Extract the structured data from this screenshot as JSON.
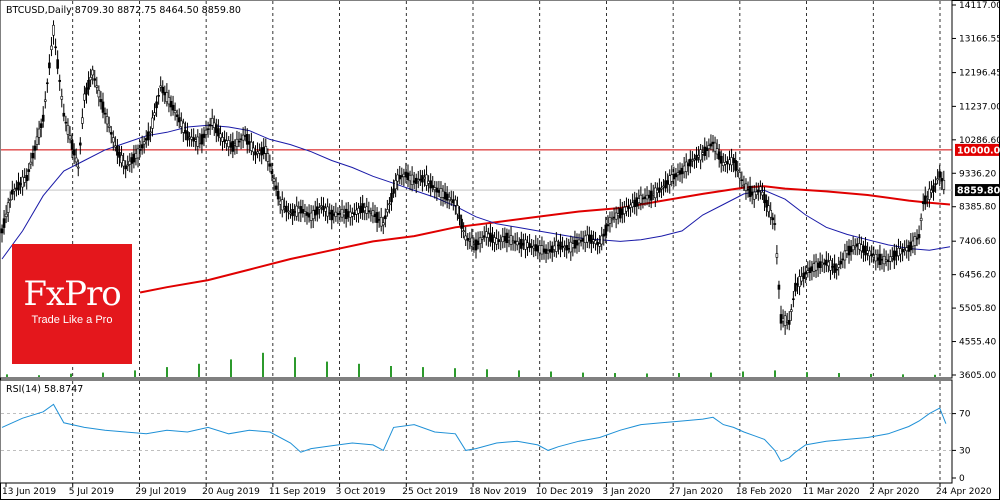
{
  "chart_data": [
    {
      "type": "candlestick",
      "info_line": "BTCUSD,Daily  8709.30 8872.75 8464.50 8859.80",
      "symbol": "BTCUSD",
      "timeframe": "Daily",
      "ohlc_last": {
        "open": 8709.3,
        "high": 8872.75,
        "low": 8464.5,
        "close": 8859.8
      },
      "price_tag": "8859.80",
      "level_line": {
        "value": 10000.0,
        "label": "10000.00"
      },
      "y_ticks": [
        "14117.00",
        "13166.55",
        "12196.45",
        "11237.00",
        "10286.60",
        "9336.20",
        "8385.80",
        "7406.60",
        "6456.20",
        "5505.80",
        "4555.40",
        "3605.00"
      ],
      "ylim": [
        3605,
        14117
      ],
      "x_ticks": [
        "13 Jun 2019",
        "5 Jul 2019",
        "29 Jul 2019",
        "20 Aug 2019",
        "11 Sep 2019",
        "3 Oct 2019",
        "25 Oct 2019",
        "18 Nov 2019",
        "10 Dec 2019",
        "3 Jan 2020",
        "27 Jan 2020",
        "18 Feb 2020",
        "11 Mar 2020",
        "2 Apr 2020",
        "24 Apr 2020"
      ],
      "series_path": [
        [
          0,
          7700
        ],
        [
          5,
          8800
        ],
        [
          12,
          9200
        ],
        [
          20,
          10900
        ],
        [
          25,
          13400
        ],
        [
          30,
          11000
        ],
        [
          37,
          9500
        ],
        [
          40,
          11500
        ],
        [
          44,
          12200
        ],
        [
          48,
          11400
        ],
        [
          55,
          10100
        ],
        [
          60,
          9500
        ],
        [
          66,
          9900
        ],
        [
          72,
          10500
        ],
        [
          77,
          11800
        ],
        [
          83,
          11200
        ],
        [
          90,
          10400
        ],
        [
          96,
          10200
        ],
        [
          102,
          10800
        ],
        [
          107,
          10300
        ],
        [
          112,
          10100
        ],
        [
          118,
          10400
        ],
        [
          123,
          9900
        ],
        [
          128,
          10000
        ],
        [
          135,
          8500
        ],
        [
          140,
          8200
        ],
        [
          145,
          8300
        ],
        [
          150,
          8100
        ],
        [
          155,
          8400
        ],
        [
          160,
          8150
        ],
        [
          165,
          8200
        ],
        [
          170,
          8150
        ],
        [
          175,
          8350
        ],
        [
          180,
          8200
        ],
        [
          185,
          7900
        ],
        [
          192,
          9200
        ],
        [
          196,
          9300
        ],
        [
          200,
          9100
        ],
        [
          205,
          9200
        ],
        [
          210,
          8900
        ],
        [
          215,
          8700
        ],
        [
          220,
          8500
        ],
        [
          225,
          7500
        ],
        [
          230,
          7300
        ],
        [
          235,
          7600
        ],
        [
          240,
          7400
        ],
        [
          245,
          7500
        ],
        [
          250,
          7350
        ],
        [
          255,
          7300
        ],
        [
          260,
          7200
        ],
        [
          265,
          7100
        ],
        [
          270,
          7300
        ],
        [
          275,
          7200
        ],
        [
          280,
          7400
        ],
        [
          285,
          7500
        ],
        [
          290,
          7300
        ],
        [
          295,
          8000
        ],
        [
          300,
          8200
        ],
        [
          305,
          8400
        ],
        [
          310,
          8600
        ],
        [
          315,
          8700
        ],
        [
          320,
          8900
        ],
        [
          325,
          9200
        ],
        [
          330,
          9400
        ],
        [
          335,
          9700
        ],
        [
          340,
          9900
        ],
        [
          345,
          10200
        ],
        [
          350,
          9600
        ],
        [
          355,
          9700
        ],
        [
          360,
          9000
        ],
        [
          365,
          8700
        ],
        [
          368,
          8900
        ],
        [
          375,
          7900
        ],
        [
          378,
          5200
        ],
        [
          382,
          5100
        ],
        [
          385,
          6100
        ],
        [
          390,
          6500
        ],
        [
          395,
          6700
        ],
        [
          400,
          6800
        ],
        [
          405,
          6600
        ],
        [
          410,
          7100
        ],
        [
          415,
          7300
        ],
        [
          420,
          7100
        ],
        [
          425,
          6900
        ],
        [
          430,
          6850
        ],
        [
          435,
          7100
        ],
        [
          440,
          7200
        ],
        [
          445,
          7550
        ],
        [
          447,
          8500
        ],
        [
          452,
          8900
        ],
        [
          455,
          9300
        ],
        [
          458,
          8860
        ]
      ],
      "ma_blue_path": [
        [
          0,
          6900
        ],
        [
          10,
          7700
        ],
        [
          20,
          8700
        ],
        [
          30,
          9400
        ],
        [
          40,
          9700
        ],
        [
          50,
          10000
        ],
        [
          60,
          10200
        ],
        [
          70,
          10400
        ],
        [
          80,
          10500
        ],
        [
          90,
          10650
        ],
        [
          100,
          10700
        ],
        [
          110,
          10650
        ],
        [
          120,
          10550
        ],
        [
          130,
          10300
        ],
        [
          140,
          10150
        ],
        [
          150,
          9950
        ],
        [
          160,
          9700
        ],
        [
          170,
          9500
        ],
        [
          180,
          9250
        ],
        [
          190,
          9050
        ],
        [
          200,
          8850
        ],
        [
          210,
          8650
        ],
        [
          220,
          8400
        ],
        [
          230,
          8100
        ],
        [
          240,
          7900
        ],
        [
          250,
          7800
        ],
        [
          260,
          7700
        ],
        [
          270,
          7600
        ],
        [
          280,
          7500
        ],
        [
          290,
          7450
        ],
        [
          300,
          7400
        ],
        [
          310,
          7450
        ],
        [
          320,
          7550
        ],
        [
          330,
          7700
        ],
        [
          340,
          8150
        ],
        [
          350,
          8450
        ],
        [
          360,
          8750
        ],
        [
          370,
          8850
        ],
        [
          380,
          8600
        ],
        [
          390,
          8150
        ],
        [
          400,
          7800
        ],
        [
          410,
          7600
        ],
        [
          420,
          7450
        ],
        [
          430,
          7300
        ],
        [
          440,
          7200
        ],
        [
          450,
          7150
        ],
        [
          460,
          7250
        ]
      ],
      "ma_red_path": [
        [
          67,
          5950
        ],
        [
          80,
          6100
        ],
        [
          100,
          6300
        ],
        [
          120,
          6600
        ],
        [
          140,
          6900
        ],
        [
          160,
          7150
        ],
        [
          180,
          7400
        ],
        [
          200,
          7550
        ],
        [
          220,
          7800
        ],
        [
          240,
          7950
        ],
        [
          260,
          8100
        ],
        [
          280,
          8250
        ],
        [
          300,
          8350
        ],
        [
          320,
          8550
        ],
        [
          340,
          8750
        ],
        [
          360,
          8930
        ],
        [
          370,
          8970
        ],
        [
          380,
          8900
        ],
        [
          400,
          8820
        ],
        [
          420,
          8720
        ],
        [
          440,
          8560
        ],
        [
          450,
          8500
        ],
        [
          460,
          8450
        ]
      ],
      "volume": [
        12,
        8,
        15,
        20,
        30,
        45,
        60,
        80,
        110,
        90,
        70,
        60,
        50,
        45,
        40,
        35,
        30,
        25,
        20,
        18,
        16,
        18,
        20,
        25,
        30,
        22,
        18,
        14,
        12,
        10
      ]
    },
    {
      "type": "line",
      "info_line": "RSI(14) 58.8747",
      "indicator": "RSI(14)",
      "value": 58.8747,
      "ylim": [
        0,
        100
      ],
      "y_ticks": [
        "70",
        "30",
        "0"
      ],
      "levels": [
        70,
        30
      ],
      "series_path": [
        [
          0,
          55
        ],
        [
          10,
          65
        ],
        [
          20,
          72
        ],
        [
          25,
          80
        ],
        [
          30,
          60
        ],
        [
          40,
          55
        ],
        [
          50,
          52
        ],
        [
          60,
          50
        ],
        [
          70,
          48
        ],
        [
          80,
          52
        ],
        [
          90,
          50
        ],
        [
          100,
          55
        ],
        [
          110,
          48
        ],
        [
          120,
          52
        ],
        [
          130,
          50
        ],
        [
          140,
          38
        ],
        [
          145,
          28
        ],
        [
          150,
          32
        ],
        [
          160,
          35
        ],
        [
          170,
          38
        ],
        [
          180,
          36
        ],
        [
          185,
          30
        ],
        [
          190,
          55
        ],
        [
          200,
          58
        ],
        [
          210,
          50
        ],
        [
          220,
          48
        ],
        [
          225,
          30
        ],
        [
          230,
          32
        ],
        [
          240,
          38
        ],
        [
          250,
          40
        ],
        [
          260,
          36
        ],
        [
          265,
          30
        ],
        [
          270,
          34
        ],
        [
          280,
          40
        ],
        [
          290,
          44
        ],
        [
          300,
          52
        ],
        [
          310,
          58
        ],
        [
          320,
          60
        ],
        [
          330,
          62
        ],
        [
          340,
          64
        ],
        [
          345,
          66
        ],
        [
          350,
          58
        ],
        [
          355,
          55
        ],
        [
          360,
          50
        ],
        [
          365,
          46
        ],
        [
          370,
          42
        ],
        [
          375,
          30
        ],
        [
          378,
          18
        ],
        [
          382,
          22
        ],
        [
          385,
          28
        ],
        [
          390,
          36
        ],
        [
          400,
          40
        ],
        [
          410,
          42
        ],
        [
          420,
          44
        ],
        [
          430,
          48
        ],
        [
          440,
          56
        ],
        [
          445,
          62
        ],
        [
          450,
          70
        ],
        [
          455,
          76
        ],
        [
          458,
          59
        ]
      ]
    }
  ],
  "logo": {
    "brand": "FxPro",
    "tagline": "Trade Like a Pro"
  }
}
